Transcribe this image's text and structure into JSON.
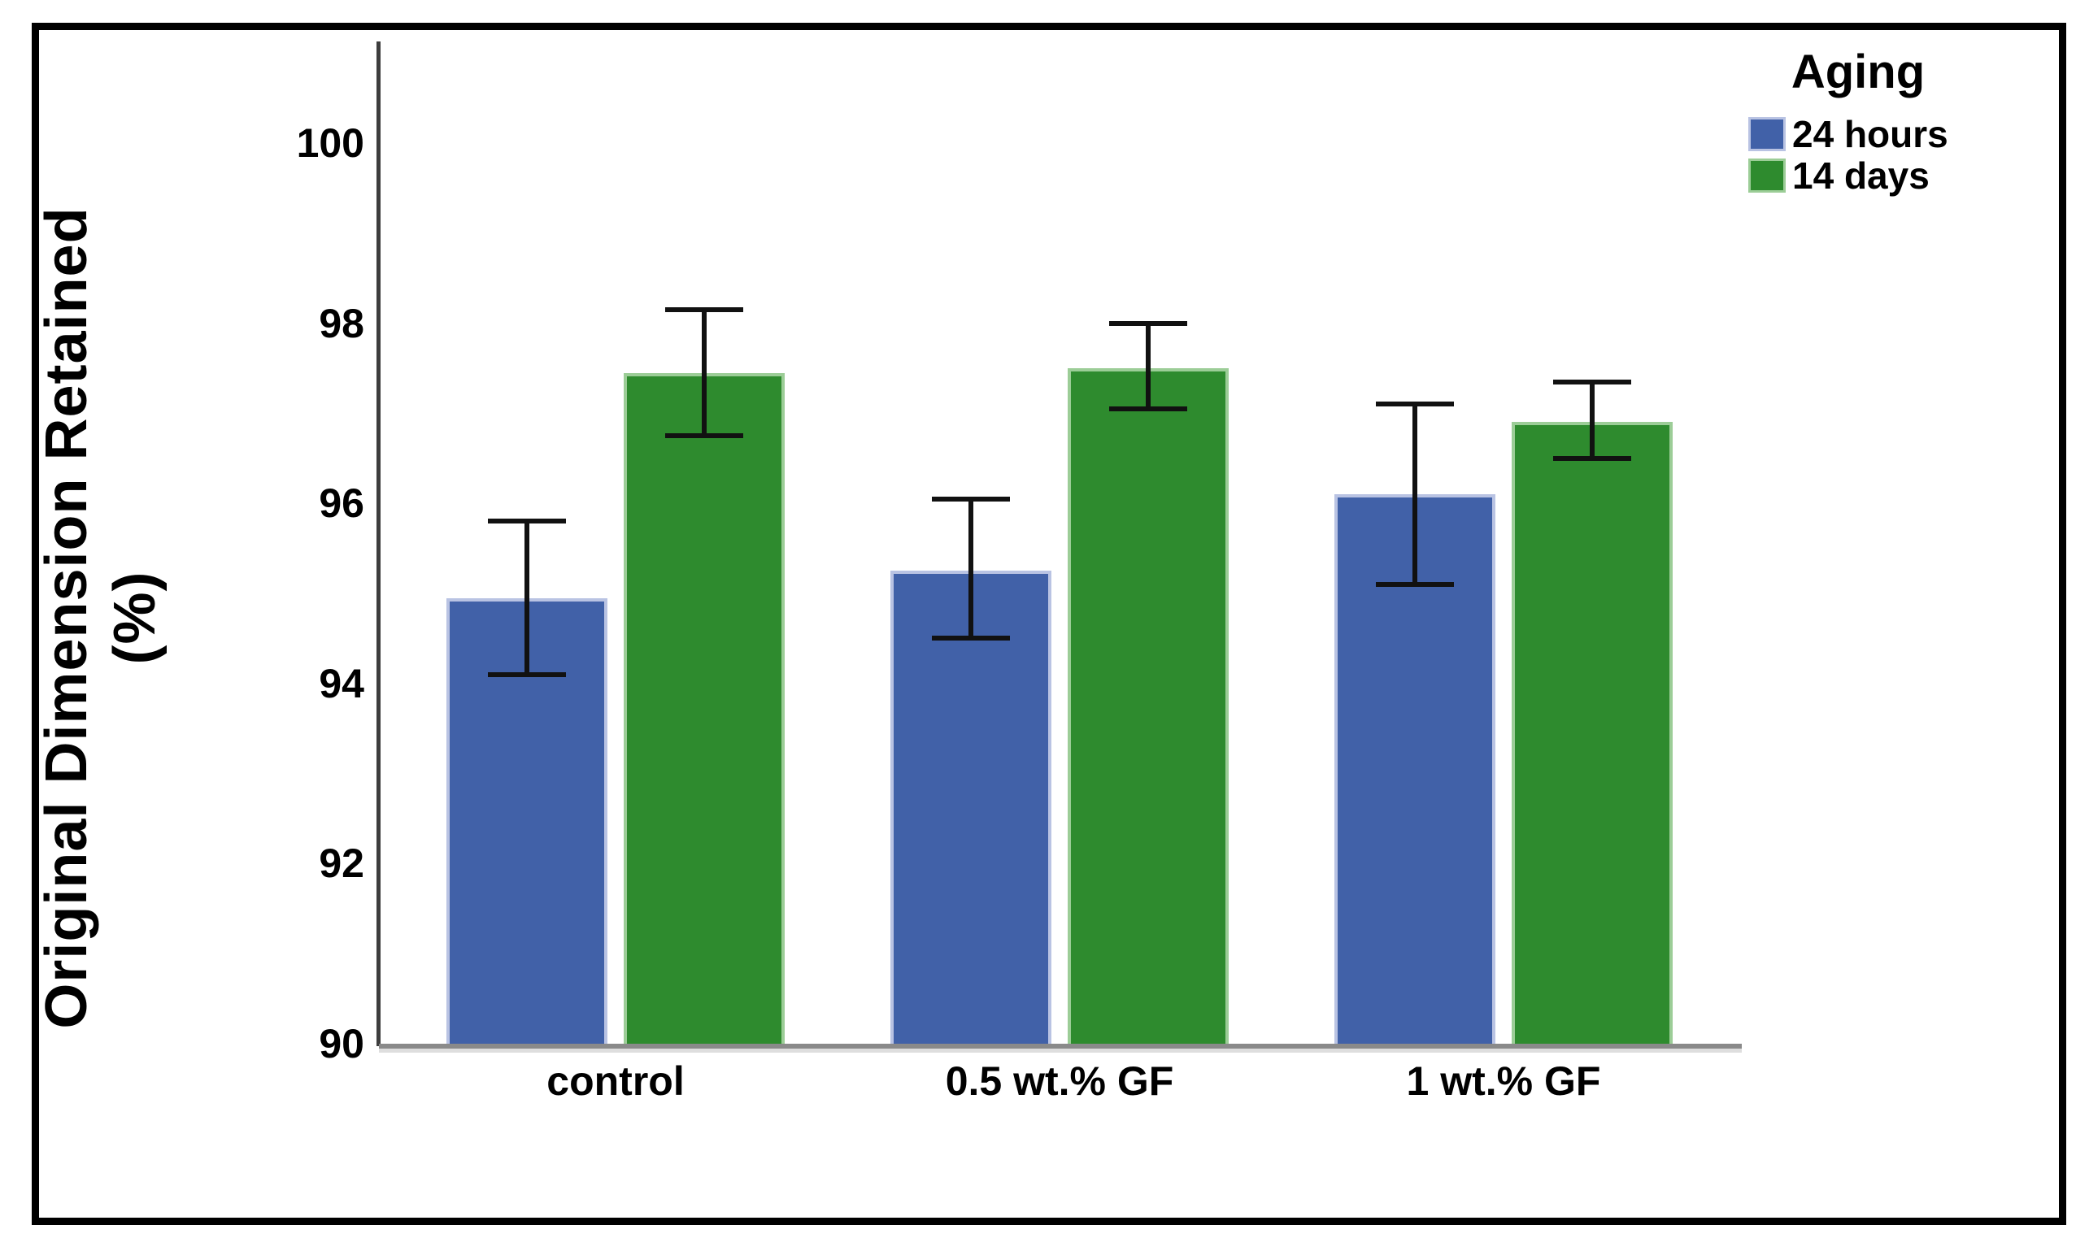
{
  "chart_data": {
    "type": "bar",
    "title": "",
    "categories": [
      "control",
      "0.5 wt.% GF",
      "1 wt.% GF"
    ],
    "series": [
      {
        "name": "24 hours",
        "color": "#4161A8",
        "edge_color": "#B9C3E3",
        "values": [
          94.95,
          95.25,
          96.1
        ],
        "error_low": [
          94.1,
          94.5,
          95.1
        ],
        "error_high": [
          95.8,
          96.05,
          97.1
        ]
      },
      {
        "name": "14 days",
        "color": "#2E8B2E",
        "edge_color": "#9CCD97",
        "values": [
          97.45,
          97.5,
          96.9
        ],
        "error_low": [
          96.75,
          97.05,
          96.5
        ],
        "error_high": [
          98.15,
          98.0,
          97.35
        ]
      }
    ],
    "legend": {
      "title": "Aging",
      "position": "top-right"
    },
    "ylabel_line1": "Original Dimension Retained",
    "ylabel_line2": "(%)",
    "yticks": [
      "90",
      "92",
      "94",
      "96",
      "98",
      "100"
    ],
    "ylim": [
      90,
      101.1
    ],
    "grid": "off",
    "error_bar_color": "#111111"
  }
}
